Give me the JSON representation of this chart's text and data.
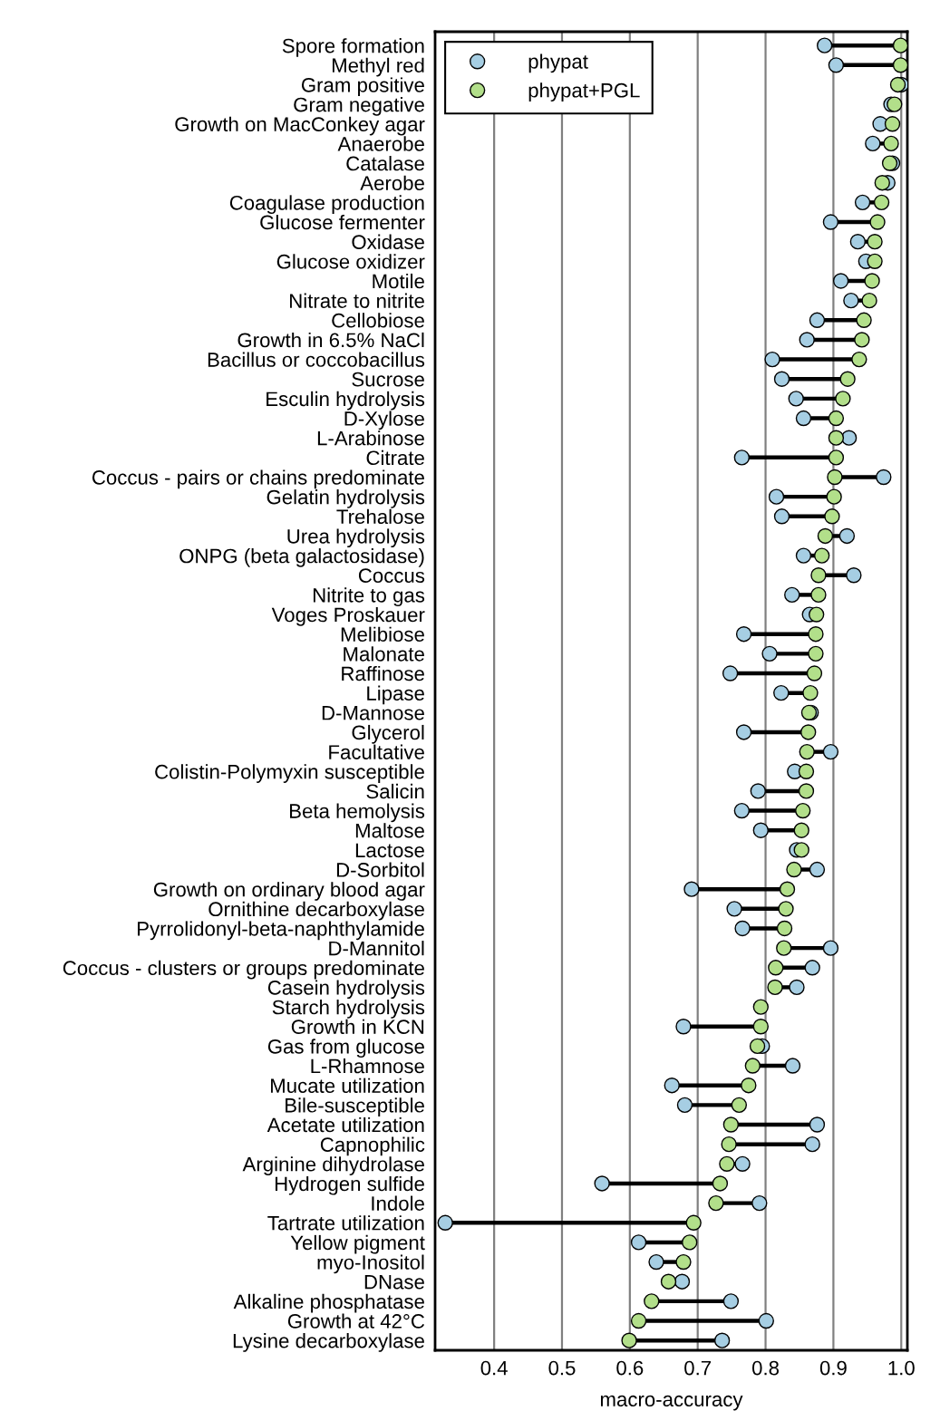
{
  "chart_data": {
    "type": "scatter",
    "orientation": "horizontal",
    "categories": [
      "Spore formation",
      "Methyl red",
      "Gram positive",
      "Gram negative",
      "Growth on MacConkey agar",
      "Anaerobe",
      "Catalase",
      "Aerobe",
      "Coagulase production",
      "Glucose fermenter",
      "Oxidase",
      "Glucose oxidizer",
      "Motile",
      "Nitrate to nitrite",
      "Cellobiose",
      "Growth in 6.5% NaCl",
      "Bacillus or coccobacillus",
      "Sucrose",
      "Esculin hydrolysis",
      "D-Xylose",
      "L-Arabinose",
      "Citrate",
      "Coccus - pairs or chains predominate",
      "Gelatin hydrolysis",
      "Trehalose",
      "Urea hydrolysis",
      "ONPG (beta galactosidase)",
      "Coccus",
      "Nitrite to gas",
      "Voges Proskauer",
      "Melibiose",
      "Malonate",
      "Raffinose",
      "Lipase",
      "D-Mannose",
      "Glycerol",
      "Facultative",
      "Colistin-Polymyxin susceptible",
      "Salicin",
      "Beta hemolysis",
      "Maltose",
      "Lactose",
      "D-Sorbitol",
      "Growth on ordinary blood agar",
      "Ornithine decarboxylase",
      "Pyrrolidonyl-beta-naphthylamide",
      "D-Mannitol",
      "Coccus - clusters or groups predominate",
      "Casein hydrolysis",
      "Starch hydrolysis",
      "Growth in KCN",
      "Gas from glucose",
      "L-Rhamnose",
      "Mucate utilization",
      "Bile-susceptible",
      "Acetate utilization",
      "Capnophilic",
      "Arginine dihydrolase",
      "Hydrogen sulfide",
      "Indole",
      "Tartrate utilization",
      "Yellow pigment",
      "myo-Inositol",
      "DNase",
      "Alkaline phosphatase",
      "Growth at 42°C",
      "Lysine decarboxylase"
    ],
    "series": [
      {
        "name": "phypat",
        "color": "#a6cee3",
        "values": [
          0.887,
          0.904,
          1.0,
          0.985,
          0.969,
          0.958,
          0.987,
          0.98,
          0.943,
          0.896,
          0.936,
          0.948,
          0.911,
          0.926,
          0.876,
          0.861,
          0.81,
          0.824,
          0.845,
          0.856,
          0.923,
          0.765,
          0.974,
          0.816,
          0.824,
          0.92,
          0.856,
          0.93,
          0.839,
          0.865,
          0.768,
          0.806,
          0.748,
          0.823,
          0.867,
          0.768,
          0.896,
          0.843,
          0.789,
          0.765,
          0.793,
          0.846,
          0.876,
          0.691,
          0.754,
          0.766,
          0.896,
          0.869,
          0.846,
          null,
          0.679,
          0.795,
          0.84,
          0.662,
          0.681,
          0.876,
          0.869,
          0.766,
          0.559,
          0.791,
          0.328,
          0.613,
          0.639,
          0.677,
          0.749,
          0.801,
          0.736
        ]
      },
      {
        "name": "phypat+PGL",
        "color": "#b2df8a",
        "values": [
          0.999,
          0.999,
          0.995,
          0.99,
          0.987,
          0.985,
          0.983,
          0.972,
          0.971,
          0.965,
          0.961,
          0.961,
          0.957,
          0.953,
          0.945,
          0.942,
          0.938,
          0.921,
          0.914,
          0.904,
          0.904,
          0.904,
          0.902,
          0.901,
          0.898,
          0.888,
          0.883,
          0.878,
          0.878,
          0.875,
          0.874,
          0.874,
          0.872,
          0.866,
          0.864,
          0.863,
          0.861,
          0.86,
          0.86,
          0.855,
          0.853,
          0.853,
          0.842,
          0.832,
          0.83,
          0.828,
          0.827,
          0.815,
          0.814,
          0.793,
          0.793,
          0.788,
          0.781,
          0.775,
          0.761,
          0.749,
          0.746,
          0.743,
          0.733,
          0.727,
          0.694,
          0.688,
          0.679,
          0.657,
          0.632,
          0.613,
          0.599
        ]
      }
    ],
    "xlabel": "macro-accuracy",
    "xlim": [
      0.313,
      1.009
    ],
    "xticks": [
      0.4,
      0.5,
      0.6,
      0.7,
      0.8,
      0.9,
      {
        "value": 1.0,
        "label": "1.0"
      }
    ],
    "grid": "x",
    "legend": "top left",
    "marker": "circle"
  }
}
